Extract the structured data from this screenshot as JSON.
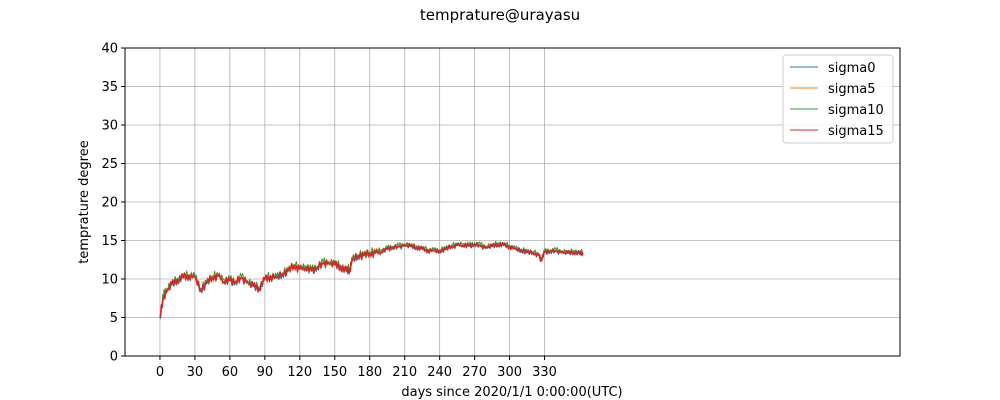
{
  "chart_data": {
    "type": "line",
    "title": "temprature@urayasu",
    "xlabel": "days since 2020/1/1 0:00:00(UTC)",
    "ylabel": "temprature degree",
    "xlim": [
      -30,
      635
    ],
    "ylim": [
      0,
      40
    ],
    "xticks": [
      0,
      30,
      60,
      90,
      120,
      150,
      180,
      210,
      240,
      270,
      300,
      330
    ],
    "yticks": [
      0,
      5,
      10,
      15,
      20,
      25,
      30,
      35,
      40
    ],
    "grid": true,
    "legend_position": "upper-right",
    "x": [
      0,
      3,
      6,
      10,
      15,
      20,
      25,
      30,
      35,
      40,
      45,
      50,
      55,
      60,
      65,
      70,
      75,
      80,
      85,
      90,
      95,
      100,
      105,
      110,
      115,
      120,
      125,
      130,
      135,
      140,
      145,
      150,
      155,
      160,
      163,
      165,
      170,
      175,
      180,
      185,
      190,
      195,
      200,
      205,
      210,
      215,
      220,
      225,
      230,
      235,
      240,
      245,
      250,
      255,
      260,
      265,
      270,
      275,
      280,
      285,
      290,
      295,
      300,
      305,
      310,
      315,
      320,
      325,
      327,
      330,
      335,
      340,
      345,
      350,
      355,
      360,
      363
    ],
    "series": [
      {
        "name": "sigma0",
        "color": "#1f77b4",
        "values": [
          4.8,
          7.5,
          8.4,
          9.2,
          9.8,
          10.1,
          10.3,
          10.2,
          8.4,
          9.4,
          10.1,
          10.3,
          9.6,
          9.7,
          9.5,
          10.0,
          9.5,
          9.0,
          8.7,
          9.8,
          10.2,
          10.1,
          10.5,
          11.0,
          11.6,
          11.2,
          11.4,
          11.0,
          11.4,
          11.9,
          12.0,
          11.8,
          11.5,
          10.9,
          11.2,
          12.4,
          12.9,
          13.0,
          13.2,
          13.3,
          13.5,
          13.8,
          14.0,
          14.1,
          14.3,
          14.2,
          14.0,
          13.8,
          13.6,
          13.6,
          13.5,
          13.8,
          14.1,
          14.3,
          14.3,
          14.2,
          14.4,
          14.2,
          14.0,
          14.2,
          14.4,
          14.3,
          14.1,
          13.8,
          13.6,
          13.4,
          13.3,
          13.0,
          12.3,
          13.4,
          13.5,
          13.5,
          13.4,
          13.3,
          13.4,
          13.2,
          13.3
        ]
      },
      {
        "name": "sigma5",
        "color": "#ff7f0e",
        "values": [
          5.2,
          7.8,
          8.6,
          9.3,
          9.9,
          10.2,
          10.4,
          10.3,
          8.6,
          9.5,
          10.2,
          10.4,
          9.7,
          9.8,
          9.6,
          10.1,
          9.6,
          9.1,
          8.8,
          9.9,
          10.3,
          10.2,
          10.6,
          11.1,
          11.7,
          11.3,
          11.5,
          11.1,
          11.5,
          12.0,
          12.1,
          11.9,
          11.6,
          11.0,
          11.3,
          12.5,
          13.0,
          13.1,
          13.3,
          13.4,
          13.6,
          13.9,
          14.1,
          14.2,
          14.4,
          14.3,
          14.1,
          13.9,
          13.7,
          13.7,
          13.6,
          13.9,
          14.2,
          14.4,
          14.4,
          14.3,
          14.5,
          14.3,
          14.1,
          14.3,
          14.5,
          14.4,
          14.2,
          13.9,
          13.7,
          13.5,
          13.4,
          13.1,
          12.4,
          13.5,
          13.6,
          13.6,
          13.5,
          13.4,
          13.5,
          13.3,
          13.4
        ]
      },
      {
        "name": "sigma10",
        "color": "#2ca02c",
        "values": [
          5.4,
          8.0,
          8.8,
          9.5,
          10.1,
          10.4,
          10.6,
          10.5,
          8.8,
          9.7,
          10.4,
          10.6,
          9.9,
          10.0,
          9.8,
          10.3,
          9.8,
          9.3,
          9.0,
          10.1,
          10.5,
          10.4,
          10.8,
          11.3,
          11.9,
          11.5,
          11.7,
          11.3,
          11.7,
          12.2,
          12.3,
          12.1,
          11.8,
          11.2,
          11.5,
          12.7,
          13.2,
          13.3,
          13.5,
          13.6,
          13.8,
          14.1,
          14.3,
          14.4,
          14.6,
          14.5,
          14.3,
          14.1,
          13.9,
          13.9,
          13.8,
          14.1,
          14.4,
          14.6,
          14.6,
          14.5,
          14.7,
          14.5,
          14.3,
          14.5,
          14.7,
          14.6,
          14.4,
          14.1,
          13.9,
          13.7,
          13.6,
          13.3,
          12.6,
          13.7,
          13.8,
          13.8,
          13.7,
          13.6,
          13.7,
          13.5,
          13.6
        ]
      },
      {
        "name": "sigma15",
        "color": "#d62728",
        "values": [
          5.0,
          7.6,
          8.5,
          9.3,
          9.9,
          10.2,
          10.4,
          10.3,
          8.5,
          9.5,
          10.2,
          10.4,
          9.7,
          9.8,
          9.6,
          10.1,
          9.6,
          9.1,
          8.8,
          9.9,
          10.3,
          10.2,
          10.6,
          11.1,
          11.7,
          11.3,
          11.5,
          11.1,
          11.5,
          12.0,
          12.1,
          11.9,
          11.6,
          11.0,
          11.3,
          12.5,
          13.0,
          13.1,
          13.3,
          13.4,
          13.6,
          13.9,
          14.1,
          14.2,
          14.4,
          14.3,
          14.1,
          13.9,
          13.7,
          13.7,
          13.6,
          13.9,
          14.2,
          14.4,
          14.4,
          14.3,
          14.5,
          14.3,
          14.1,
          14.3,
          14.5,
          14.4,
          14.2,
          13.9,
          13.7,
          13.5,
          13.4,
          13.1,
          12.4,
          13.5,
          13.6,
          13.6,
          13.5,
          13.4,
          13.5,
          13.3,
          13.4
        ]
      }
    ]
  }
}
